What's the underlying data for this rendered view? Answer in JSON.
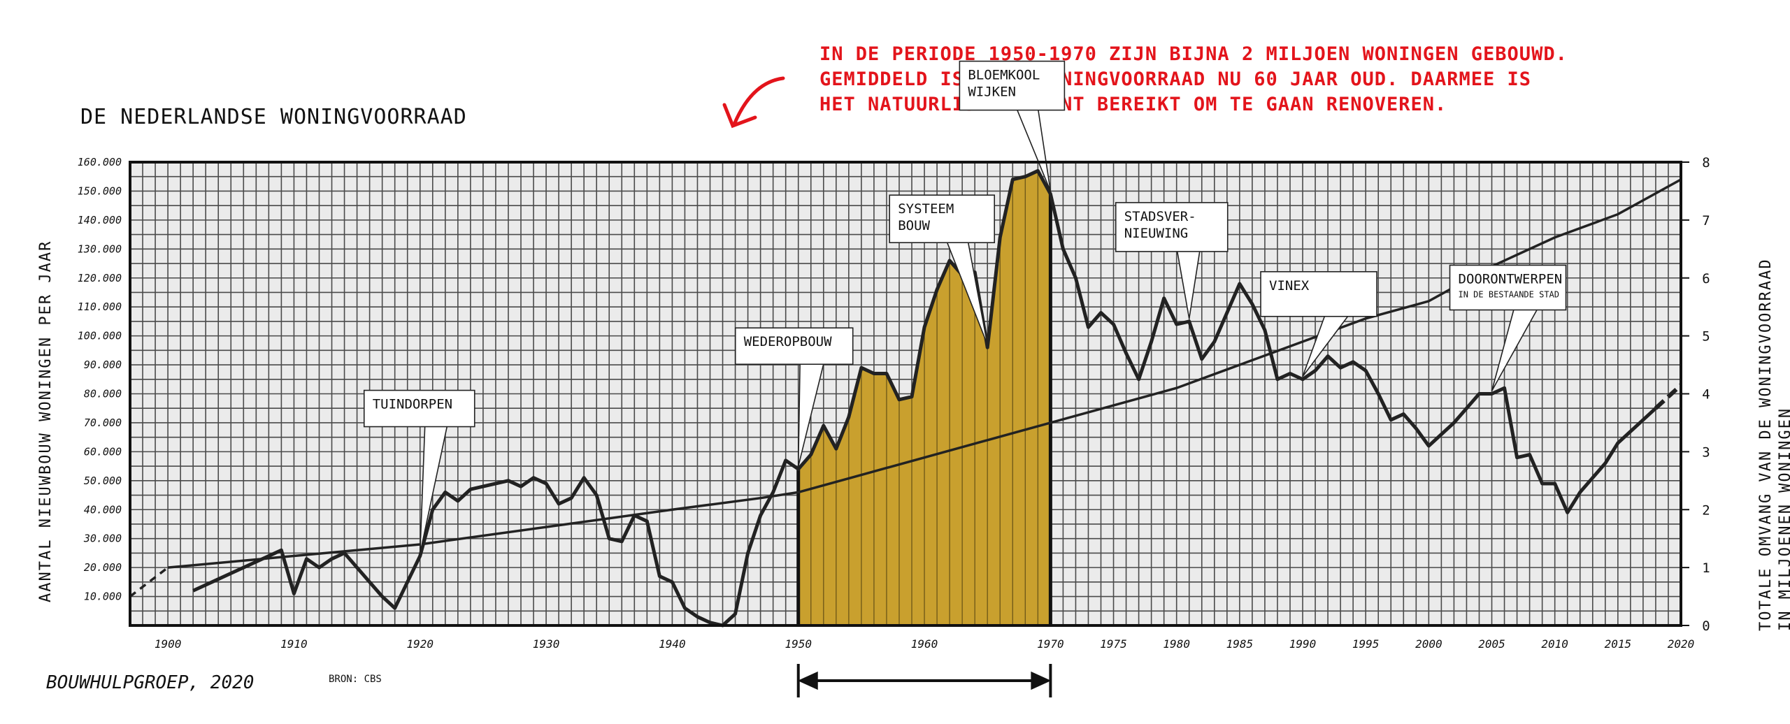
{
  "title": "DE NEDERLANDSE WONINGVOORRAAD",
  "note_lines": [
    "IN DE PERIODE 1950-1970 ZIJN BIJNA 2 MILJOEN WONINGEN GEBOUWD.",
    "GEMIDDELD IS DEZE WONINGVOORRAAD NU 60 JAAR OUD. DAARMEE IS",
    "HET NATUURLIJKE MOMENT BEREIKT OM TE GAAN RENOVEREN."
  ],
  "footer": {
    "author": "BOUWHULPGROEP, 2020",
    "source": "BRON: CBS"
  },
  "colors": {
    "note": "#e3141b",
    "fill": "#c9a02e",
    "grid": "#555555",
    "bg": "#ebebeb"
  },
  "chart_data": {
    "type": "line",
    "xlabel": "",
    "ylabel": "AANTAL NIEUWBOUW WONINGEN PER JAAR",
    "ylabel_right": "TOTALE OMVANG VAN DE WONINGVOORRAAD IN MILJOENEN WONINGEN",
    "xlim": [
      1897,
      2020
    ],
    "ylim": [
      0,
      160000
    ],
    "ylim_right": [
      0,
      8
    ],
    "grid": true,
    "x_ticks": [
      {
        "value": 1900,
        "label": "1900"
      },
      {
        "value": 1910,
        "label": "1910"
      },
      {
        "value": 1920,
        "label": "1920"
      },
      {
        "value": 1930,
        "label": "1930"
      },
      {
        "value": 1940,
        "label": "1940"
      },
      {
        "value": 1950,
        "label": "1950"
      },
      {
        "value": 1960,
        "label": "1960"
      },
      {
        "value": 1970,
        "label": "1970"
      },
      {
        "value": 1975,
        "label": "1975"
      },
      {
        "value": 1980,
        "label": "1980"
      },
      {
        "value": 1985,
        "label": "1985"
      },
      {
        "value": 1990,
        "label": "1990"
      },
      {
        "value": 1995,
        "label": "1995"
      },
      {
        "value": 2000,
        "label": "2000"
      },
      {
        "value": 2005,
        "label": "2005"
      },
      {
        "value": 2010,
        "label": "2010"
      },
      {
        "value": 2015,
        "label": "2015"
      },
      {
        "value": 2020,
        "label": "2020"
      }
    ],
    "y_ticks_left": [
      {
        "value": 10000,
        "label": "10.000"
      },
      {
        "value": 20000,
        "label": "20.000"
      },
      {
        "value": 30000,
        "label": "30.000"
      },
      {
        "value": 40000,
        "label": "40.000"
      },
      {
        "value": 50000,
        "label": "50.000"
      },
      {
        "value": 60000,
        "label": "60.000"
      },
      {
        "value": 70000,
        "label": "70.000"
      },
      {
        "value": 80000,
        "label": "80.000"
      },
      {
        "value": 90000,
        "label": "90.000"
      },
      {
        "value": 100000,
        "label": "100.000"
      },
      {
        "value": 110000,
        "label": "110.000"
      },
      {
        "value": 120000,
        "label": "120.000"
      },
      {
        "value": 130000,
        "label": "130.000"
      },
      {
        "value": 140000,
        "label": "140.000"
      },
      {
        "value": 150000,
        "label": "150.000"
      },
      {
        "value": 160000,
        "label": "160.000"
      }
    ],
    "y_ticks_right": [
      {
        "value": 0,
        "label": "0"
      },
      {
        "value": 1,
        "label": "1"
      },
      {
        "value": 2,
        "label": "2"
      },
      {
        "value": 3,
        "label": "3"
      },
      {
        "value": 4,
        "label": "4"
      },
      {
        "value": 5,
        "label": "5"
      },
      {
        "value": 6,
        "label": "6"
      },
      {
        "value": 7,
        "label": "7"
      },
      {
        "value": 8,
        "label": "8"
      }
    ],
    "series": [
      {
        "axis": "left",
        "role": "new_construction",
        "x": [
          1902,
          1903,
          1904,
          1905,
          1906,
          1907,
          1908,
          1909,
          1910,
          1911,
          1912,
          1913,
          1914,
          1915,
          1916,
          1917,
          1918,
          1919,
          1920,
          1921,
          1922,
          1923,
          1924,
          1925,
          1926,
          1927,
          1928,
          1929,
          1930,
          1931,
          1932,
          1933,
          1934,
          1935,
          1936,
          1937,
          1938,
          1939,
          1940,
          1941,
          1942,
          1943,
          1944,
          1945,
          1946,
          1947,
          1948,
          1949,
          1950,
          1951,
          1952,
          1953,
          1954,
          1955,
          1956,
          1957,
          1958,
          1959,
          1960,
          1961,
          1962,
          1963,
          1964,
          1965,
          1966,
          1967,
          1968,
          1969,
          1970,
          1971,
          1972,
          1973,
          1974,
          1975,
          1976,
          1977,
          1978,
          1979,
          1980,
          1981,
          1982,
          1983,
          1984,
          1985,
          1986,
          1987,
          1988,
          1989,
          1990,
          1991,
          1992,
          1993,
          1994,
          1995,
          1996,
          1997,
          1998,
          1999,
          2000,
          2001,
          2002,
          2003,
          2004,
          2005,
          2006,
          2007,
          2008,
          2009,
          2010,
          2011,
          2012,
          2013,
          2014,
          2015,
          2016,
          2017,
          2018,
          2019,
          2020
        ],
        "y": [
          12000,
          14000,
          16000,
          18000,
          20000,
          22000,
          24000,
          26000,
          11000,
          23000,
          20000,
          23000,
          25000,
          20000,
          15000,
          10000,
          6000,
          15000,
          24000,
          40000,
          46000,
          43000,
          47000,
          48000,
          49000,
          50000,
          48000,
          51000,
          49000,
          42000,
          44000,
          51000,
          45000,
          30000,
          29000,
          38000,
          36000,
          17000,
          15000,
          6000,
          3000,
          1000,
          0,
          4000,
          25000,
          38000,
          46000,
          57000,
          54000,
          59000,
          69000,
          61000,
          72000,
          89000,
          87000,
          87000,
          78000,
          79000,
          103000,
          116000,
          126000,
          121000,
          122000,
          96000,
          134000,
          154000,
          155000,
          157000,
          149000,
          130000,
          120000,
          103000,
          108000,
          104000,
          94000,
          85000,
          98000,
          113000,
          104000,
          105000,
          92000,
          98000,
          108000,
          118000,
          111000,
          102000,
          85000,
          87000,
          85000,
          88000,
          93000,
          89000,
          91000,
          88000,
          80000,
          71000,
          73000,
          68000,
          62000,
          66000,
          70000,
          75000,
          80000,
          80000,
          82000,
          58000,
          59000,
          49000,
          49000,
          39000,
          46000,
          51000,
          56000,
          63000,
          67000,
          71000,
          75000,
          79000,
          83000
        ],
        "projected_from": 2018
      },
      {
        "axis": "right",
        "role": "total_stock",
        "x": [
          1897,
          1900,
          1910,
          1920,
          1930,
          1940,
          1947,
          1950,
          1955,
          1960,
          1965,
          1970,
          1975,
          1980,
          1985,
          1990,
          1995,
          2000,
          2005,
          2010,
          2015,
          2020
        ],
        "y": [
          0.5,
          1.0,
          1.2,
          1.4,
          1.7,
          2.0,
          2.2,
          2.3,
          2.6,
          2.9,
          3.2,
          3.5,
          3.8,
          4.1,
          4.5,
          4.9,
          5.3,
          5.6,
          6.2,
          6.7,
          7.1,
          7.7
        ],
        "projected_until": 1900
      }
    ],
    "highlight_range": [
      1950,
      1970
    ],
    "annotations": [
      {
        "label": "TUINDORPEN",
        "x": 1920
      },
      {
        "label": "WEDEROPBOUW",
        "x": 1950
      },
      {
        "label": "SYSTEEM BOUW",
        "x": 1965
      },
      {
        "label": "BLOEMKOOL WIJKEN",
        "x": 1970
      },
      {
        "label": "STADSVER- NIEUWING",
        "x": 1981
      },
      {
        "label": "VINEX",
        "x": 1990
      },
      {
        "label": "DOORONTWERPEN",
        "sub": "IN DE BESTAANDE STAD",
        "x": 2005
      }
    ]
  }
}
